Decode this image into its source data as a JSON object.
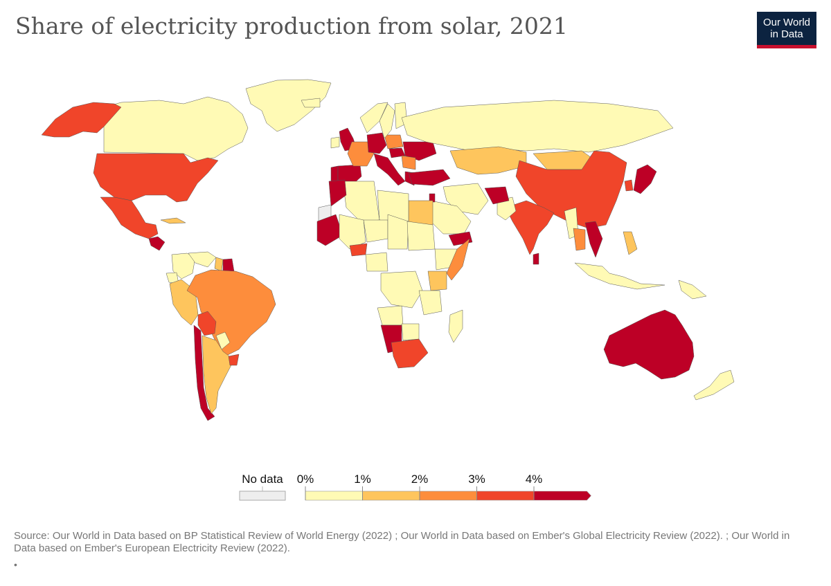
{
  "title": "Share of electricity production from solar, 2021",
  "logo": {
    "line1": "Our World",
    "line2": "in Data",
    "bg_color": "#0c2340",
    "accent_color": "#c8102e"
  },
  "legend": {
    "no_data_label": "No data",
    "no_data_color": "#eeeeee",
    "ticks": [
      "0%",
      "1%",
      "2%",
      "3%",
      "4%"
    ],
    "bins": [
      {
        "from": 0,
        "to": 1,
        "color": "#fffab5"
      },
      {
        "from": 1,
        "to": 2,
        "color": "#fec55d"
      },
      {
        "from": 2,
        "to": 3,
        "color": "#fd8d3c"
      },
      {
        "from": 3,
        "to": 4,
        "color": "#f0452a"
      },
      {
        "from": 4,
        "to": null,
        "color": "#bd0026"
      }
    ]
  },
  "map": {
    "type": "choropleth",
    "metric": "Share of electricity production from solar (%)",
    "year": 2021,
    "regions": [
      {
        "name": "Canada",
        "value": 0.5
      },
      {
        "name": "Greenland",
        "value": 0.2
      },
      {
        "name": "Alaska",
        "value": 3.5
      },
      {
        "name": "United States",
        "value": 3.9
      },
      {
        "name": "Mexico",
        "value": 3.6
      },
      {
        "name": "Central America",
        "value": 4.5
      },
      {
        "name": "Cuba",
        "value": 1.5
      },
      {
        "name": "Colombia",
        "value": 0.5
      },
      {
        "name": "Venezuela",
        "value": 0.1
      },
      {
        "name": "Guyana",
        "value": 1.2
      },
      {
        "name": "Suriname",
        "value": 4.5
      },
      {
        "name": "Ecuador",
        "value": 0.3
      },
      {
        "name": "Peru",
        "value": 1.5
      },
      {
        "name": "Brazil",
        "value": 2.5
      },
      {
        "name": "Bolivia",
        "value": 3.3
      },
      {
        "name": "Paraguay",
        "value": 0.0
      },
      {
        "name": "Chile",
        "value": 10.5
      },
      {
        "name": "Argentina",
        "value": 1.4
      },
      {
        "name": "Uruguay",
        "value": 3.2
      },
      {
        "name": "Iceland",
        "value": 0.0
      },
      {
        "name": "United Kingdom",
        "value": 4.2
      },
      {
        "name": "Ireland",
        "value": 0.5
      },
      {
        "name": "Portugal",
        "value": 4.8
      },
      {
        "name": "Spain",
        "value": 10.5
      },
      {
        "name": "France",
        "value": 2.8
      },
      {
        "name": "Germany",
        "value": 9.2
      },
      {
        "name": "Italy",
        "value": 9.4
      },
      {
        "name": "Poland",
        "value": 2.5
      },
      {
        "name": "Hungary",
        "value": 8.8
      },
      {
        "name": "Ukraine",
        "value": 5.4
      },
      {
        "name": "Romania",
        "value": 2.5
      },
      {
        "name": "Greece",
        "value": 12.0
      },
      {
        "name": "Turkey",
        "value": 4.1
      },
      {
        "name": "Norway",
        "value": 0.0
      },
      {
        "name": "Sweden",
        "value": 0.5
      },
      {
        "name": "Finland",
        "value": 0.3
      },
      {
        "name": "Russia",
        "value": 0.3
      },
      {
        "name": "Kazakhstan",
        "value": 1.9
      },
      {
        "name": "Mongolia",
        "value": 1.5
      },
      {
        "name": "China",
        "value": 3.9
      },
      {
        "name": "Japan",
        "value": 9.3
      },
      {
        "name": "South Korea",
        "value": 3.9
      },
      {
        "name": "India",
        "value": 3.9
      },
      {
        "name": "Pakistan",
        "value": 0.5
      },
      {
        "name": "Afghanistan",
        "value": 4.5
      },
      {
        "name": "Iran",
        "value": 0.4
      },
      {
        "name": "Saudi Arabia",
        "value": 0.3
      },
      {
        "name": "Yemen",
        "value": 8.0
      },
      {
        "name": "Jordan",
        "value": 16.0
      },
      {
        "name": "Egypt",
        "value": 1.8
      },
      {
        "name": "Libya",
        "value": 0.1
      },
      {
        "name": "Algeria",
        "value": 0.5
      },
      {
        "name": "Morocco",
        "value": 4.5
      },
      {
        "name": "Western Sahara",
        "value": null
      },
      {
        "name": "Mauritania",
        "value": 7.0
      },
      {
        "name": "Mali",
        "value": 0.5
      },
      {
        "name": "Niger",
        "value": 0.5
      },
      {
        "name": "Chad",
        "value": 0.3
      },
      {
        "name": "Sudan",
        "value": 0.5
      },
      {
        "name": "Ethiopia",
        "value": 0.1
      },
      {
        "name": "Somalia",
        "value": 2.5
      },
      {
        "name": "Kenya",
        "value": 1.5
      },
      {
        "name": "Burkina Faso",
        "value": 3.8
      },
      {
        "name": "Nigeria",
        "value": 0.1
      },
      {
        "name": "DR Congo",
        "value": 0.1
      },
      {
        "name": "Tanzania",
        "value": 0.5
      },
      {
        "name": "Angola",
        "value": 0.3
      },
      {
        "name": "Namibia",
        "value": 7.0
      },
      {
        "name": "Botswana",
        "value": 0.5
      },
      {
        "name": "South Africa",
        "value": 3.5
      },
      {
        "name": "Madagascar",
        "value": 0.5
      },
      {
        "name": "Myanmar",
        "value": 0.1
      },
      {
        "name": "Thailand",
        "value": 2.2
      },
      {
        "name": "Vietnam",
        "value": 10.8
      },
      {
        "name": "Philippines",
        "value": 1.3
      },
      {
        "name": "Indonesia",
        "value": 0.1
      },
      {
        "name": "Sri Lanka",
        "value": 4.2
      },
      {
        "name": "Papua New Guinea",
        "value": 0.3
      },
      {
        "name": "Australia",
        "value": 12.0
      },
      {
        "name": "New Zealand",
        "value": 0.3
      }
    ]
  },
  "source": "Source: Our World in Data based on BP Statistical Review of World Energy (2022) ; Our World in Data based on Ember's Global Electricity Review (2022). ; Our World in Data based on Ember's European Electricity Review (2022).",
  "bullet": "•"
}
